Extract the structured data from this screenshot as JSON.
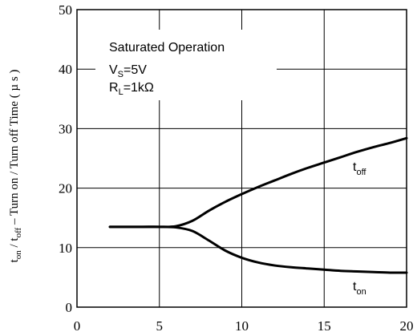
{
  "chart_data": {
    "type": "line",
    "title": "",
    "xlabel": "",
    "ylabel": {
      "t": "t",
      "on": "on",
      "sep": " / t",
      "off": "off",
      "rest": " – Turn on / Turn off Time ( µ s )"
    },
    "xlim": [
      0,
      20
    ],
    "ylim": [
      0,
      50
    ],
    "xticks": [
      "0",
      "5",
      "10",
      "15",
      "20"
    ],
    "yticks": [
      "0",
      "10",
      "20",
      "30",
      "40",
      "50"
    ],
    "grid": true,
    "annotation": {
      "title": "Saturated Operation",
      "vs": {
        "main": "V",
        "sub": "S",
        "rest": "=5V"
      },
      "rl": {
        "main": "R",
        "sub": "L",
        "rest": "=1kΩ"
      }
    },
    "series": [
      {
        "name": "toff",
        "label_main": "t",
        "label_sub": "off",
        "x": [
          2,
          3,
          4,
          5,
          6,
          7,
          8,
          9,
          10,
          11,
          12,
          13,
          14,
          15,
          16,
          17,
          18,
          19,
          20
        ],
        "y": [
          13.5,
          13.5,
          13.5,
          13.5,
          13.6,
          14.5,
          16.2,
          17.7,
          19.0,
          20.2,
          21.3,
          22.4,
          23.4,
          24.3,
          25.2,
          26.1,
          26.9,
          27.6,
          28.4
        ]
      },
      {
        "name": "ton",
        "label_main": "t",
        "label_sub": "on",
        "x": [
          2,
          3,
          4,
          5,
          6,
          7,
          8,
          9,
          10,
          11,
          12,
          13,
          14,
          15,
          16,
          17,
          18,
          19,
          20
        ],
        "y": [
          13.5,
          13.5,
          13.5,
          13.5,
          13.4,
          12.8,
          11.2,
          9.5,
          8.3,
          7.5,
          7.0,
          6.7,
          6.5,
          6.3,
          6.1,
          6.0,
          5.9,
          5.8,
          5.8
        ]
      }
    ]
  }
}
